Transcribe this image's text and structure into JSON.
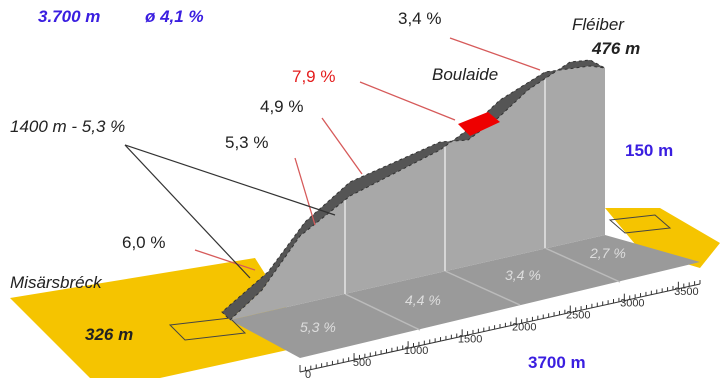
{
  "header": {
    "length": "3.700 m",
    "average": "ø 4,1 %"
  },
  "profile": {
    "labels": {
      "top_gradient": "3,4 %",
      "summit_name": "Fléiber",
      "summit_altitude": "476 m",
      "steepest": "7,9 %",
      "steep_name": "Boulaide",
      "gradient_a": "4,9 %",
      "gradient_b": "5,3 %",
      "section": "1400 m - 5,3 %",
      "height_gain": "150 m",
      "gradient_c": "6,0 %",
      "start_name": "Misärsbréck",
      "start_altitude": "326 m",
      "total_length": "3700 m"
    },
    "floor_gradients": [
      "5,3 %",
      "4,4 %",
      "3,4 %",
      "2,7 %"
    ],
    "distance_ticks": [
      0,
      500,
      1000,
      1500,
      2000,
      2500,
      3000,
      3500
    ]
  }
}
